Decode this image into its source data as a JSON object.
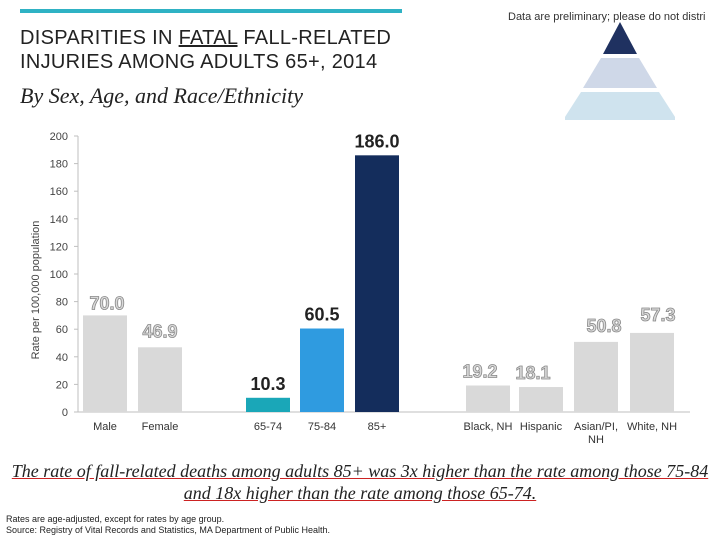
{
  "header": {
    "title_part1": "DISPARITIES IN ",
    "title_underlined": "FATAL",
    "title_part2": " FALL-RELATED INJURIES AMONG ADULTS 65+, 2014",
    "subtitle": "By Sex, Age, and Race/Ethnicity",
    "note": "Data are preliminary; please do not distri"
  },
  "logo": {
    "icon": "pyramid-icon",
    "colors": [
      "#1f3160",
      "#cfd8e8",
      "#cfe3ee"
    ]
  },
  "chart_data": {
    "type": "bar",
    "ylabel": "Rate per 100,000 population",
    "xlabel": "",
    "ylim": [
      0,
      200
    ],
    "yticks": [
      0,
      20,
      40,
      60,
      80,
      100,
      120,
      140,
      160,
      180,
      200
    ],
    "grid": false,
    "categories": [
      "Male",
      "Female",
      "65-74",
      "75-84",
      "85+",
      "Black, NH",
      "Hispanic",
      "Asian/PI, NH",
      "White, NH"
    ],
    "values": [
      70.0,
      46.9,
      10.3,
      60.5,
      186.0,
      19.2,
      18.1,
      50.8,
      57.3
    ],
    "value_labels": [
      "70.0",
      "46.9",
      "10.3",
      "60.5",
      "186.0",
      "19.2",
      "18.1",
      "50.8",
      "57.3"
    ],
    "groups": [
      {
        "categories": [
          "Male",
          "Female"
        ]
      },
      {
        "categories": [
          "65-74",
          "75-84",
          "85+"
        ]
      },
      {
        "categories": [
          "Black, NH",
          "Hispanic",
          "Asian/PI, NH",
          "White, NH"
        ]
      }
    ],
    "colors": {
      "gray": "#d9d9d9",
      "age_65_74": "#1aa7b8",
      "age_75_84": "#2f9be0",
      "age_85_plus": "#142d5c"
    }
  },
  "footer": {
    "text": "The rate of fall-related deaths among adults 85+ was 3x higher than the rate among those 75-84 and 18x higher than the rate among those 65-74."
  },
  "sources": {
    "line1": "Rates are age-adjusted, except for rates by age group.",
    "line2": "Source: Registry of Vital Records and Statistics, MA Department of Public Health."
  }
}
